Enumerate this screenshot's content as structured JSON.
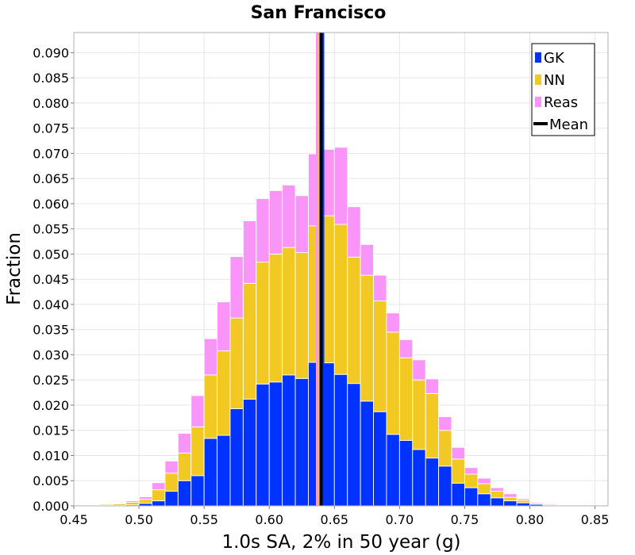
{
  "chart_data": {
    "type": "bar",
    "stacked": true,
    "title": "San Francisco",
    "xlabel": "1.0s SA, 2% in 50 year (g)",
    "ylabel": "Fraction",
    "xlim": [
      0.45,
      0.86
    ],
    "ylim": [
      0.0,
      0.094
    ],
    "xticks": [
      "0.45",
      "0.50",
      "0.55",
      "0.60",
      "0.65",
      "0.70",
      "0.75",
      "0.80",
      "0.85"
    ],
    "xtick_values": [
      0.45,
      0.5,
      0.55,
      0.6,
      0.65,
      0.7,
      0.75,
      0.8,
      0.85
    ],
    "yticks": [
      "0.000",
      "0.005",
      "0.010",
      "0.015",
      "0.020",
      "0.025",
      "0.030",
      "0.035",
      "0.040",
      "0.045",
      "0.050",
      "0.055",
      "0.060",
      "0.065",
      "0.070",
      "0.075",
      "0.080",
      "0.085",
      "0.090"
    ],
    "ytick_values": [
      0,
      0.005,
      0.01,
      0.015,
      0.02,
      0.025,
      0.03,
      0.035,
      0.04,
      0.045,
      0.05,
      0.055,
      0.06,
      0.065,
      0.07,
      0.075,
      0.08,
      0.085,
      0.09
    ],
    "bin_width": 0.01,
    "bin_starts": [
      0.46,
      0.47,
      0.48,
      0.49,
      0.5,
      0.51,
      0.52,
      0.53,
      0.54,
      0.55,
      0.56,
      0.57,
      0.58,
      0.59,
      0.6,
      0.61,
      0.62,
      0.63,
      0.64,
      0.65,
      0.66,
      0.67,
      0.68,
      0.69,
      0.7,
      0.71,
      0.72,
      0.73,
      0.74,
      0.75,
      0.76,
      0.77,
      0.78,
      0.79,
      0.8,
      0.81,
      0.82,
      0.83,
      0.84
    ],
    "series": [
      {
        "name": "GK",
        "color": "#0033ff",
        "values": [
          0.0,
          0.0001,
          0.0001,
          0.0002,
          0.0005,
          0.001,
          0.0029,
          0.005,
          0.006,
          0.0134,
          0.014,
          0.0193,
          0.0212,
          0.0242,
          0.0246,
          0.026,
          0.0253,
          0.0285,
          0.0284,
          0.0261,
          0.0243,
          0.0208,
          0.0187,
          0.0142,
          0.013,
          0.0112,
          0.0095,
          0.0079,
          0.0045,
          0.0036,
          0.0024,
          0.0016,
          0.001,
          0.0006,
          0.0003,
          0.0001,
          0.0001,
          0.0,
          0.0
        ]
      },
      {
        "name": "NN",
        "color": "#f2c823",
        "values": [
          0.0001,
          0.0002,
          0.0003,
          0.0005,
          0.0008,
          0.0022,
          0.0036,
          0.0055,
          0.0097,
          0.0126,
          0.0168,
          0.018,
          0.023,
          0.0242,
          0.0254,
          0.0253,
          0.025,
          0.0271,
          0.0292,
          0.0298,
          0.0251,
          0.025,
          0.022,
          0.0203,
          0.0164,
          0.0138,
          0.0128,
          0.0071,
          0.0048,
          0.0027,
          0.002,
          0.0013,
          0.0007,
          0.0005,
          0.0002,
          0.0001,
          0.0,
          0.0,
          0.0
        ]
      },
      {
        "name": "Reas",
        "color": "#f994f9",
        "values": [
          0.0,
          0.0001,
          0.0001,
          0.0003,
          0.0005,
          0.0014,
          0.0024,
          0.0039,
          0.0062,
          0.0072,
          0.0097,
          0.0122,
          0.0124,
          0.0126,
          0.0126,
          0.0124,
          0.0113,
          0.0143,
          0.0132,
          0.0153,
          0.01,
          0.0061,
          0.0051,
          0.0038,
          0.0036,
          0.004,
          0.0029,
          0.0027,
          0.0023,
          0.0013,
          0.0011,
          0.0007,
          0.0007,
          0.0003,
          0.0002,
          0.0002,
          0.0001,
          0.0001,
          0.0001
        ]
      }
    ],
    "mean_lines": [
      {
        "series": "Reas",
        "value": 0.6367,
        "color": "#f994f9"
      },
      {
        "series": "NN",
        "value": 0.6383,
        "color": "#f2c823"
      },
      {
        "series": "GK",
        "value": 0.6413,
        "color": "#0033ff"
      },
      {
        "series": "Mean",
        "value": 0.6398,
        "color": "#000000"
      }
    ],
    "legend": {
      "position": "top-right",
      "entries": [
        {
          "label": "GK",
          "color": "#0033ff",
          "kind": "box"
        },
        {
          "label": "NN",
          "color": "#f2c823",
          "kind": "box"
        },
        {
          "label": "Reas",
          "color": "#f994f9",
          "kind": "box"
        },
        {
          "label": "Mean",
          "color": "#000000",
          "kind": "line"
        }
      ]
    },
    "grid": true
  }
}
